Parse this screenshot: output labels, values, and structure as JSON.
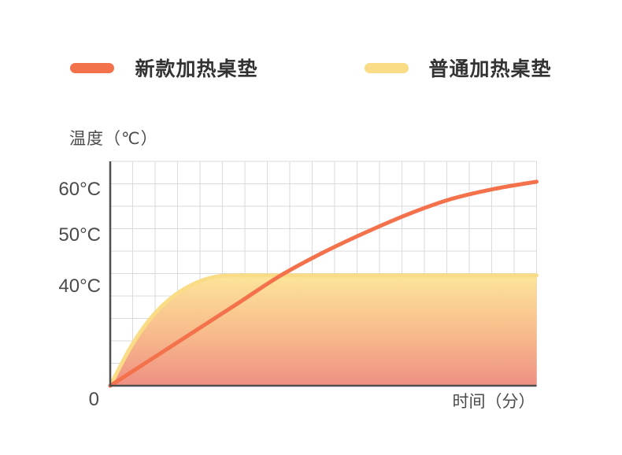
{
  "legend": {
    "items": [
      {
        "label": "新款加热桌垫",
        "color": "#f3724c"
      },
      {
        "label": "普通加热桌垫",
        "color": "#f9dc85"
      }
    ]
  },
  "chart_data": {
    "type": "line",
    "title": "",
    "ylabel": "温度（℃）",
    "xlabel": "时间（分）",
    "origin_label": "0",
    "x_range": [
      0,
      10
    ],
    "grid": true,
    "legend_position": "top",
    "axis_color": "#4f4f4f",
    "grid_color": "#dadada",
    "tick_color": "#4b4b4b",
    "yticks": [
      {
        "value": 40,
        "label": "40°C"
      },
      {
        "value": 50,
        "label": "50°C"
      },
      {
        "value": 60,
        "label": "60°C"
      }
    ],
    "y_scale_anchors": [
      [
        0,
        0
      ],
      [
        40,
        0.446
      ],
      [
        50,
        0.674
      ],
      [
        60,
        0.877
      ]
    ],
    "series": [
      {
        "name": "新款加热桌垫",
        "color": "#f3724c",
        "x": [
          0,
          1,
          2,
          3,
          4,
          5,
          6,
          7,
          8,
          9,
          10
        ],
        "values": [
          0,
          11,
          22,
          33,
          42,
          46.5,
          50.5,
          54.5,
          57.8,
          60,
          61.6
        ]
      },
      {
        "name": "普通加热桌垫",
        "color": "#f9dc85",
        "fill": true,
        "fill_gradient": [
          {
            "offset": 0,
            "color": "#fce49a"
          },
          {
            "offset": 0.5,
            "color": "#f8bd8c"
          },
          {
            "offset": 1,
            "color": "#ef9083"
          }
        ],
        "x": [
          0,
          0.5,
          1,
          1.5,
          2,
          2.5,
          3,
          4,
          6,
          8,
          10
        ],
        "values": [
          0,
          16,
          28,
          36,
          40.5,
          41.8,
          42,
          42,
          42,
          42,
          42
        ]
      }
    ]
  }
}
